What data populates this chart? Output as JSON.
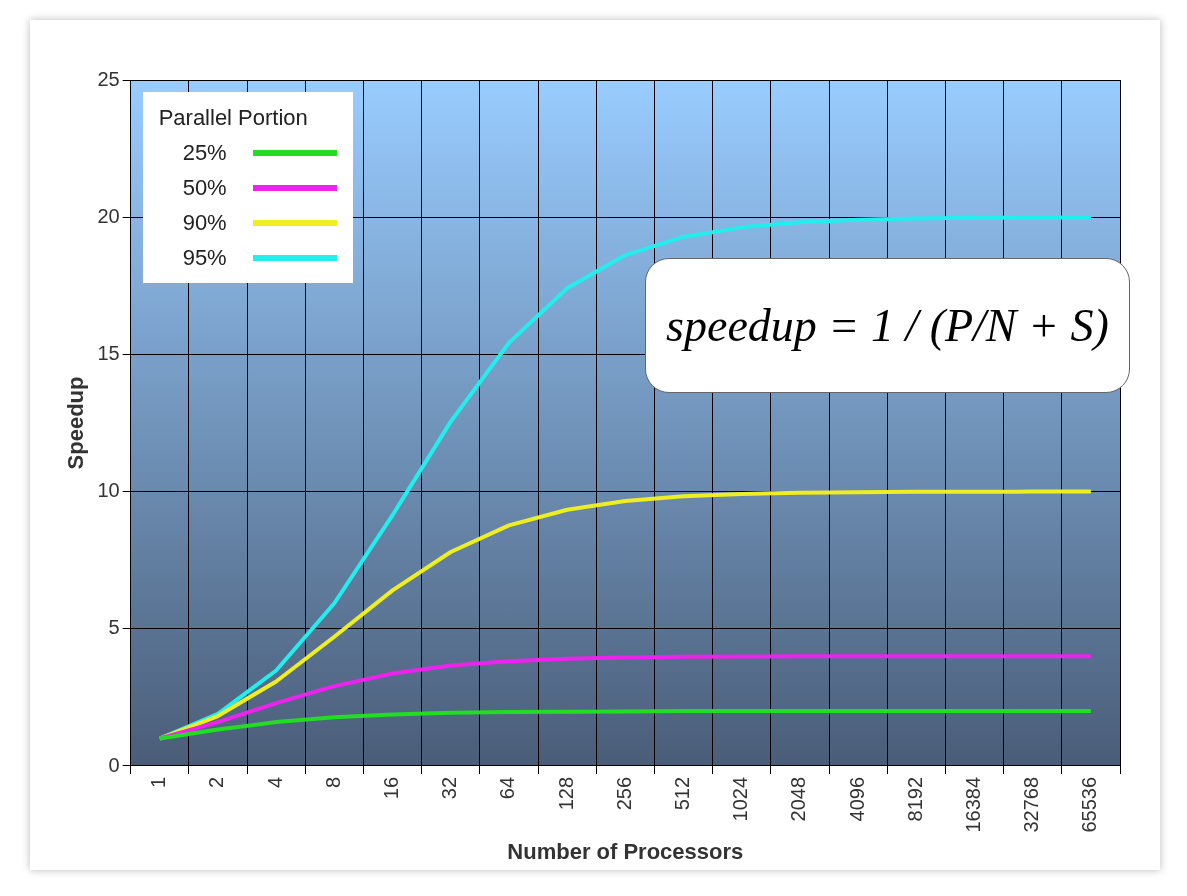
{
  "chart_data": {
    "type": "line",
    "xlabel": "Number of Processors",
    "ylabel": "Speedup",
    "legend_title": "Parallel Portion",
    "categories": [
      "1",
      "2",
      "4",
      "8",
      "16",
      "32",
      "64",
      "128",
      "256",
      "512",
      "1024",
      "2048",
      "4096",
      "8192",
      "16384",
      "32768",
      "65536"
    ],
    "series": [
      {
        "name": "25%",
        "color": "#22dd22",
        "values": [
          1,
          1.33,
          1.6,
          1.78,
          1.88,
          1.94,
          1.97,
          1.98,
          1.99,
          2,
          2,
          2,
          2,
          2,
          2,
          2,
          2
        ]
      },
      {
        "name": "50%",
        "color": "#ee22ee",
        "values": [
          1,
          1.6,
          2.29,
          2.91,
          3.37,
          3.66,
          3.82,
          3.91,
          3.95,
          3.98,
          3.99,
          4,
          4,
          4,
          4,
          4,
          4
        ]
      },
      {
        "name": "90%",
        "color": "#eeee22",
        "values": [
          1,
          1.82,
          3.08,
          4.71,
          6.4,
          7.8,
          8.77,
          9.34,
          9.66,
          9.83,
          9.91,
          9.96,
          9.98,
          9.99,
          9.99,
          10,
          10
        ]
      },
      {
        "name": "95%",
        "color": "#22eeee",
        "values": [
          1,
          1.9,
          3.48,
          5.93,
          9.14,
          12.55,
          15.42,
          17.41,
          18.62,
          19.28,
          19.63,
          19.82,
          19.91,
          19.95,
          19.98,
          19.99,
          19.99
        ]
      }
    ],
    "ylim": [
      0,
      25
    ],
    "yticks": [
      0,
      5,
      10,
      15,
      20,
      25
    ],
    "grid": true,
    "legend": "top left",
    "marker": "none",
    "line_style": "solid",
    "annotations": [
      "speedup = 1 / (P/N + S)"
    ]
  }
}
